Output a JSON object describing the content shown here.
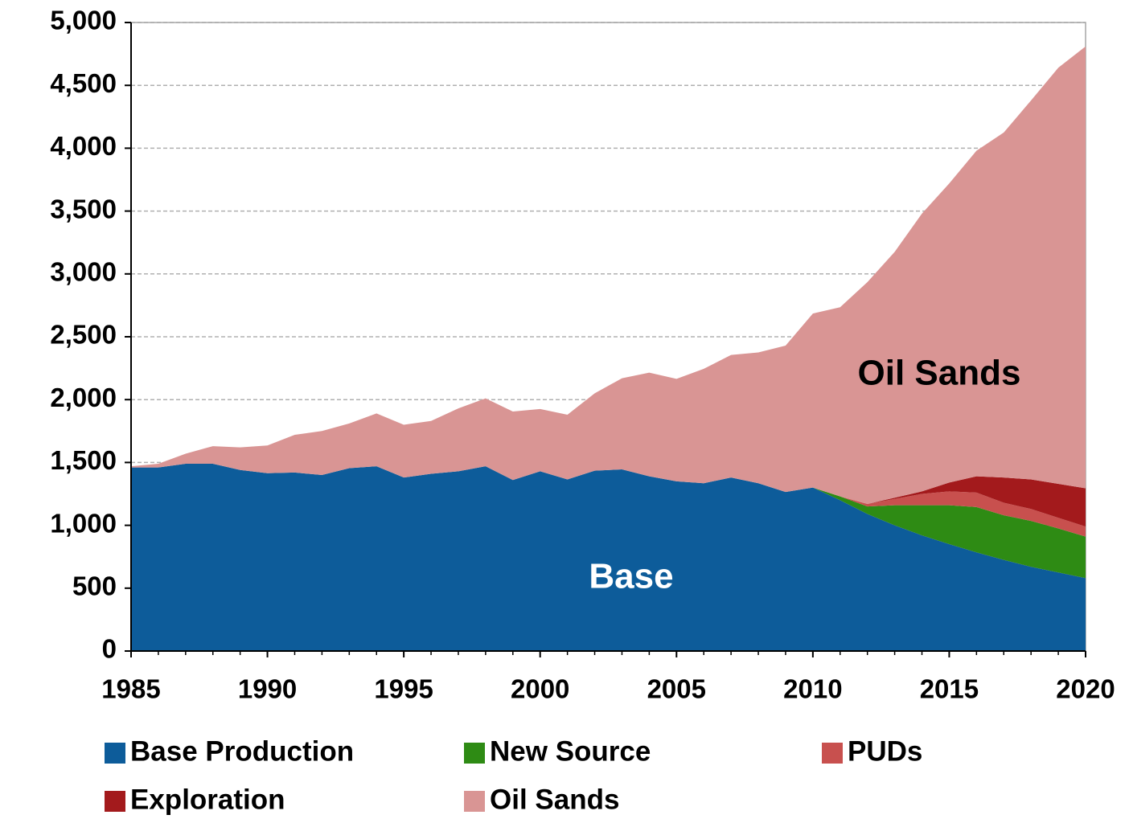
{
  "chart_data": {
    "type": "stacked_area",
    "x": [
      1985,
      1986,
      1987,
      1988,
      1989,
      1990,
      1991,
      1992,
      1993,
      1994,
      1995,
      1996,
      1997,
      1998,
      1999,
      2000,
      2001,
      2002,
      2003,
      2004,
      2005,
      2006,
      2007,
      2008,
      2009,
      2010,
      2011,
      2012,
      2013,
      2014,
      2015,
      2016,
      2017,
      2018,
      2019,
      2020
    ],
    "series": [
      {
        "name": "Base Production",
        "color": "#0d5c9a",
        "values": [
          1460,
          1460,
          1490,
          1490,
          1440,
          1415,
          1420,
          1400,
          1455,
          1470,
          1380,
          1410,
          1430,
          1470,
          1360,
          1430,
          1365,
          1435,
          1445,
          1390,
          1350,
          1335,
          1380,
          1335,
          1265,
          1300,
          1200,
          1090,
          1000,
          920,
          850,
          785,
          725,
          670,
          625,
          580
        ]
      },
      {
        "name": "New Source",
        "color": "#2e8b14",
        "values": [
          0,
          0,
          0,
          0,
          0,
          0,
          0,
          0,
          0,
          0,
          0,
          0,
          0,
          0,
          0,
          0,
          0,
          0,
          0,
          0,
          0,
          0,
          0,
          0,
          0,
          0,
          30,
          60,
          160,
          240,
          310,
          360,
          355,
          365,
          350,
          330
        ]
      },
      {
        "name": "PUDs",
        "color": "#c8504e",
        "values": [
          0,
          0,
          0,
          0,
          0,
          0,
          0,
          0,
          0,
          0,
          0,
          0,
          0,
          0,
          0,
          0,
          0,
          0,
          0,
          0,
          0,
          0,
          0,
          0,
          0,
          0,
          0,
          20,
          50,
          90,
          110,
          115,
          100,
          95,
          85,
          80
        ]
      },
      {
        "name": "Exploration",
        "color": "#a31a1c",
        "values": [
          0,
          0,
          0,
          0,
          0,
          0,
          0,
          0,
          0,
          0,
          0,
          0,
          0,
          0,
          0,
          0,
          0,
          0,
          0,
          0,
          0,
          0,
          0,
          0,
          0,
          0,
          0,
          0,
          10,
          20,
          70,
          130,
          200,
          235,
          270,
          305
        ]
      },
      {
        "name": "Oil Sands",
        "color": "#d99594",
        "values": [
          10,
          30,
          80,
          140,
          180,
          220,
          300,
          350,
          355,
          420,
          420,
          420,
          500,
          540,
          545,
          495,
          515,
          615,
          725,
          825,
          815,
          910,
          975,
          1040,
          1165,
          1385,
          1505,
          1765,
          1955,
          2210,
          2380,
          2590,
          2745,
          3015,
          3310,
          3515
        ]
      }
    ],
    "xlim": [
      1985,
      2020
    ],
    "xticks": [
      1985,
      1990,
      1995,
      2000,
      2005,
      2010,
      2015,
      2020
    ],
    "ylim": [
      0,
      5000
    ],
    "yticks": [
      0,
      500,
      {
        "value": 1000,
        "label": "1,000"
      },
      {
        "value": 1500,
        "label": "1,500"
      },
      {
        "value": 2000,
        "label": "2,000"
      },
      {
        "value": 2500,
        "label": "2,500"
      },
      {
        "value": 3000,
        "label": "3,000"
      },
      {
        "value": 3500,
        "label": "3,500"
      },
      {
        "value": 4000,
        "label": "4,000"
      },
      {
        "value": 4500,
        "label": "4,500"
      },
      {
        "value": 5000,
        "label": "5,000"
      }
    ],
    "grid": true,
    "legend": "bottom",
    "annotations": [
      "Oil Sands",
      "Base"
    ]
  }
}
